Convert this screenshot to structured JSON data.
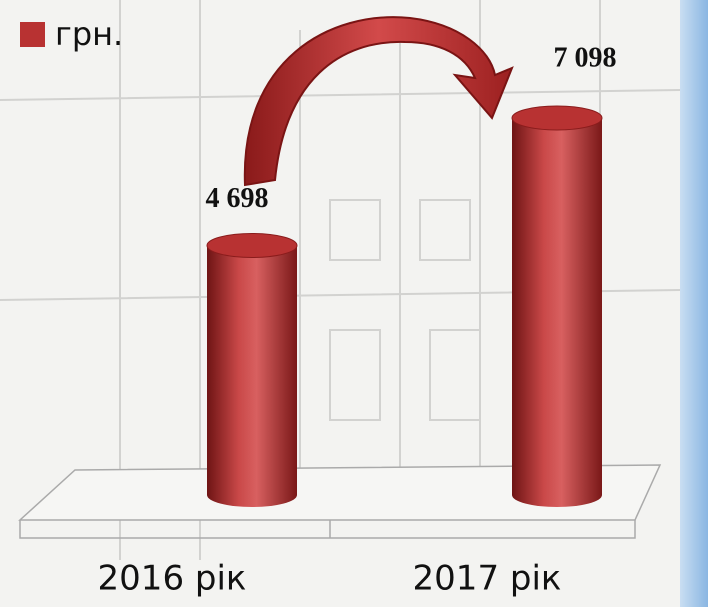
{
  "chart_data": {
    "type": "cylinder-bar",
    "legend": "грн.",
    "color": "#b83232",
    "categories": [
      "2016 рік",
      "2017 рік"
    ],
    "values": [
      4698,
      7098
    ],
    "value_labels": [
      "4 698",
      "7 098"
    ]
  }
}
